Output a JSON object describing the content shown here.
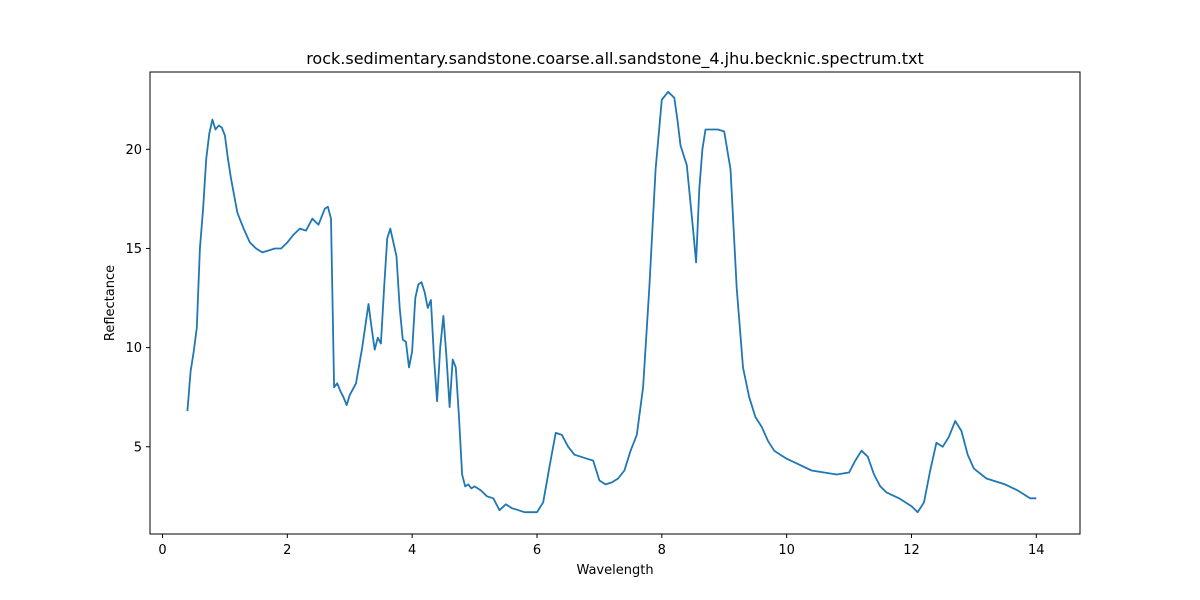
{
  "chart_data": {
    "type": "line",
    "title": "rock.sedimentary.sandstone.coarse.all.sandstone_4.jhu.becknic.spectrum.txt",
    "xlabel": "Wavelength",
    "ylabel": "Reflectance",
    "xlim": [
      -0.2,
      14.7
    ],
    "ylim": [
      0.6,
      23.9
    ],
    "xticks": [
      0,
      2,
      4,
      6,
      8,
      10,
      12,
      14
    ],
    "yticks": [
      5,
      10,
      15,
      20
    ],
    "grid": false,
    "color": "#1f77b4",
    "series": [
      {
        "x": [
          0.4,
          0.45,
          0.5,
          0.55,
          0.6,
          0.65,
          0.7,
          0.75,
          0.8,
          0.85,
          0.9,
          0.95,
          1.0,
          1.05,
          1.1,
          1.2,
          1.3,
          1.4,
          1.5,
          1.6,
          1.7,
          1.8,
          1.9,
          2.0,
          2.1,
          2.2,
          2.3,
          2.4,
          2.5,
          2.6,
          2.65,
          2.7,
          2.75,
          2.8,
          2.85,
          2.9,
          2.95,
          3.0,
          3.1,
          3.2,
          3.3,
          3.35,
          3.4,
          3.45,
          3.5,
          3.55,
          3.6,
          3.65,
          3.7,
          3.75,
          3.8,
          3.85,
          3.9,
          3.95,
          4.0,
          4.05,
          4.1,
          4.15,
          4.2,
          4.25,
          4.3,
          4.35,
          4.4,
          4.45,
          4.5,
          4.55,
          4.6,
          4.65,
          4.7,
          4.75,
          4.8,
          4.85,
          4.9,
          4.95,
          5.0,
          5.1,
          5.2,
          5.3,
          5.4,
          5.5,
          5.6,
          5.7,
          5.8,
          5.9,
          6.0,
          6.1,
          6.2,
          6.3,
          6.4,
          6.5,
          6.6,
          6.7,
          6.8,
          6.9,
          7.0,
          7.1,
          7.2,
          7.3,
          7.4,
          7.5,
          7.6,
          7.7,
          7.8,
          7.9,
          8.0,
          8.1,
          8.2,
          8.25,
          8.3,
          8.4,
          8.5,
          8.55,
          8.6,
          8.65,
          8.7,
          8.8,
          8.9,
          9.0,
          9.1,
          9.2,
          9.3,
          9.4,
          9.5,
          9.6,
          9.7,
          9.8,
          10.0,
          10.2,
          10.4,
          10.6,
          10.8,
          11.0,
          11.1,
          11.2,
          11.3,
          11.4,
          11.5,
          11.6,
          11.8,
          12.0,
          12.1,
          12.2,
          12.3,
          12.4,
          12.5,
          12.6,
          12.7,
          12.8,
          12.9,
          13.0,
          13.2,
          13.5,
          13.7,
          13.9,
          14.0
        ],
        "y": [
          6.8,
          8.8,
          9.8,
          11.0,
          15.0,
          17.0,
          19.5,
          20.8,
          21.5,
          21.0,
          21.2,
          21.1,
          20.7,
          19.5,
          18.5,
          16.8,
          16.0,
          15.3,
          15.0,
          14.8,
          14.9,
          15.0,
          15.0,
          15.3,
          15.7,
          16.0,
          15.9,
          16.5,
          16.2,
          17.0,
          17.1,
          16.5,
          8.0,
          8.2,
          7.8,
          7.5,
          7.1,
          7.6,
          8.2,
          10.0,
          12.2,
          11.0,
          9.9,
          10.5,
          10.2,
          13.0,
          15.5,
          16.0,
          15.3,
          14.6,
          12.0,
          10.4,
          10.3,
          9.0,
          9.8,
          12.5,
          13.2,
          13.3,
          12.8,
          12.0,
          12.4,
          9.5,
          7.3,
          10.0,
          11.6,
          9.5,
          7.0,
          9.4,
          9.0,
          6.5,
          3.6,
          3.0,
          3.1,
          2.9,
          3.0,
          2.8,
          2.5,
          2.4,
          1.8,
          2.1,
          1.9,
          1.8,
          1.7,
          1.7,
          1.7,
          2.2,
          4.0,
          5.7,
          5.6,
          5.0,
          4.6,
          4.5,
          4.4,
          4.3,
          3.3,
          3.1,
          3.2,
          3.4,
          3.8,
          4.8,
          5.6,
          8.0,
          13.0,
          19.0,
          22.5,
          22.9,
          22.6,
          21.5,
          20.2,
          19.2,
          16.0,
          14.3,
          18.0,
          20.0,
          21.0,
          21.0,
          21.0,
          20.9,
          19.0,
          13.0,
          9.0,
          7.5,
          6.5,
          6.0,
          5.3,
          4.8,
          4.4,
          4.1,
          3.8,
          3.7,
          3.6,
          3.7,
          4.3,
          4.8,
          4.5,
          3.6,
          3.0,
          2.7,
          2.4,
          2.0,
          1.7,
          2.2,
          3.8,
          5.2,
          5.0,
          5.5,
          6.3,
          5.8,
          4.6,
          3.9,
          3.4,
          3.1,
          2.8,
          2.4,
          2.4
        ]
      }
    ]
  }
}
